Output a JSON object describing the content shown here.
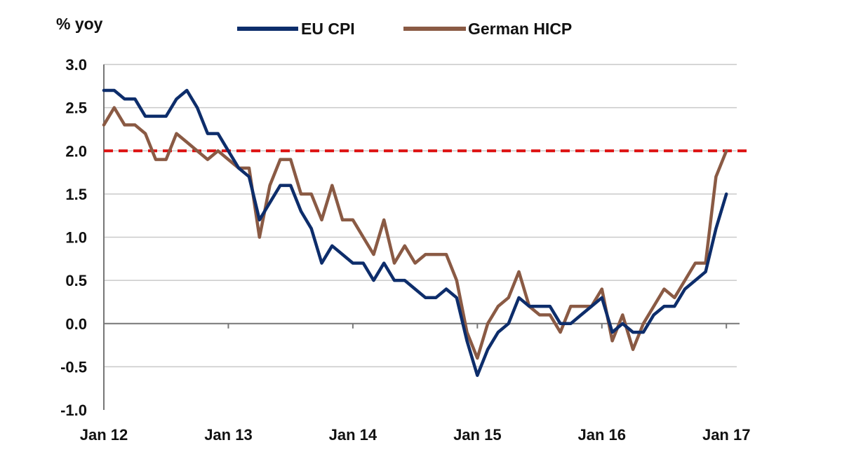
{
  "chart_data": {
    "type": "line",
    "ylabel": "% yoy",
    "ylim": [
      -1.0,
      3.0
    ],
    "y_ticks": [
      "3.0",
      "2.5",
      "2.0",
      "1.5",
      "1.0",
      "0.5",
      "0.0",
      "-0.5",
      "-1.0"
    ],
    "x_tick_labels": [
      "Jan 12",
      "Jan 13",
      "Jan 14",
      "Jan 15",
      "Jan 16",
      "Jan 17"
    ],
    "x_range_months": [
      0,
      61
    ],
    "grid": true,
    "legend_placement": "top-center",
    "reference_line": {
      "value": 2.0,
      "style": "dashed",
      "color": "#dd1111"
    },
    "series": [
      {
        "name": "EU CPI",
        "color": "#0d2d6b",
        "values": [
          2.7,
          2.7,
          2.6,
          2.6,
          2.4,
          2.4,
          2.4,
          2.6,
          2.7,
          2.5,
          2.2,
          2.2,
          2.0,
          1.8,
          1.7,
          1.2,
          1.4,
          1.6,
          1.6,
          1.3,
          1.1,
          0.7,
          0.9,
          0.8,
          0.7,
          0.7,
          0.5,
          0.7,
          0.5,
          0.5,
          0.4,
          0.3,
          0.3,
          0.4,
          0.3,
          -0.2,
          -0.6,
          -0.3,
          -0.1,
          0.0,
          0.3,
          0.2,
          0.2,
          0.2,
          0.0,
          0.0,
          0.1,
          0.2,
          0.3,
          -0.1,
          0.0,
          -0.1,
          -0.1,
          0.1,
          0.2,
          0.2,
          0.4,
          0.5,
          0.6,
          1.1,
          1.5
        ]
      },
      {
        "name": "German HICP",
        "color": "#8a5a44",
        "values": [
          2.3,
          2.5,
          2.3,
          2.3,
          2.2,
          1.9,
          1.9,
          2.2,
          2.1,
          2.0,
          1.9,
          2.0,
          1.9,
          1.8,
          1.8,
          1.0,
          1.6,
          1.9,
          1.9,
          1.5,
          1.5,
          1.2,
          1.6,
          1.2,
          1.2,
          1.0,
          0.8,
          1.2,
          0.7,
          0.9,
          0.7,
          0.8,
          0.8,
          0.8,
          0.5,
          -0.1,
          -0.4,
          0.0,
          0.2,
          0.3,
          0.6,
          0.2,
          0.1,
          0.1,
          -0.1,
          0.2,
          0.2,
          0.2,
          0.4,
          -0.2,
          0.1,
          -0.3,
          0.0,
          0.2,
          0.4,
          0.3,
          0.5,
          0.7,
          0.7,
          1.7,
          2.0
        ]
      }
    ]
  }
}
